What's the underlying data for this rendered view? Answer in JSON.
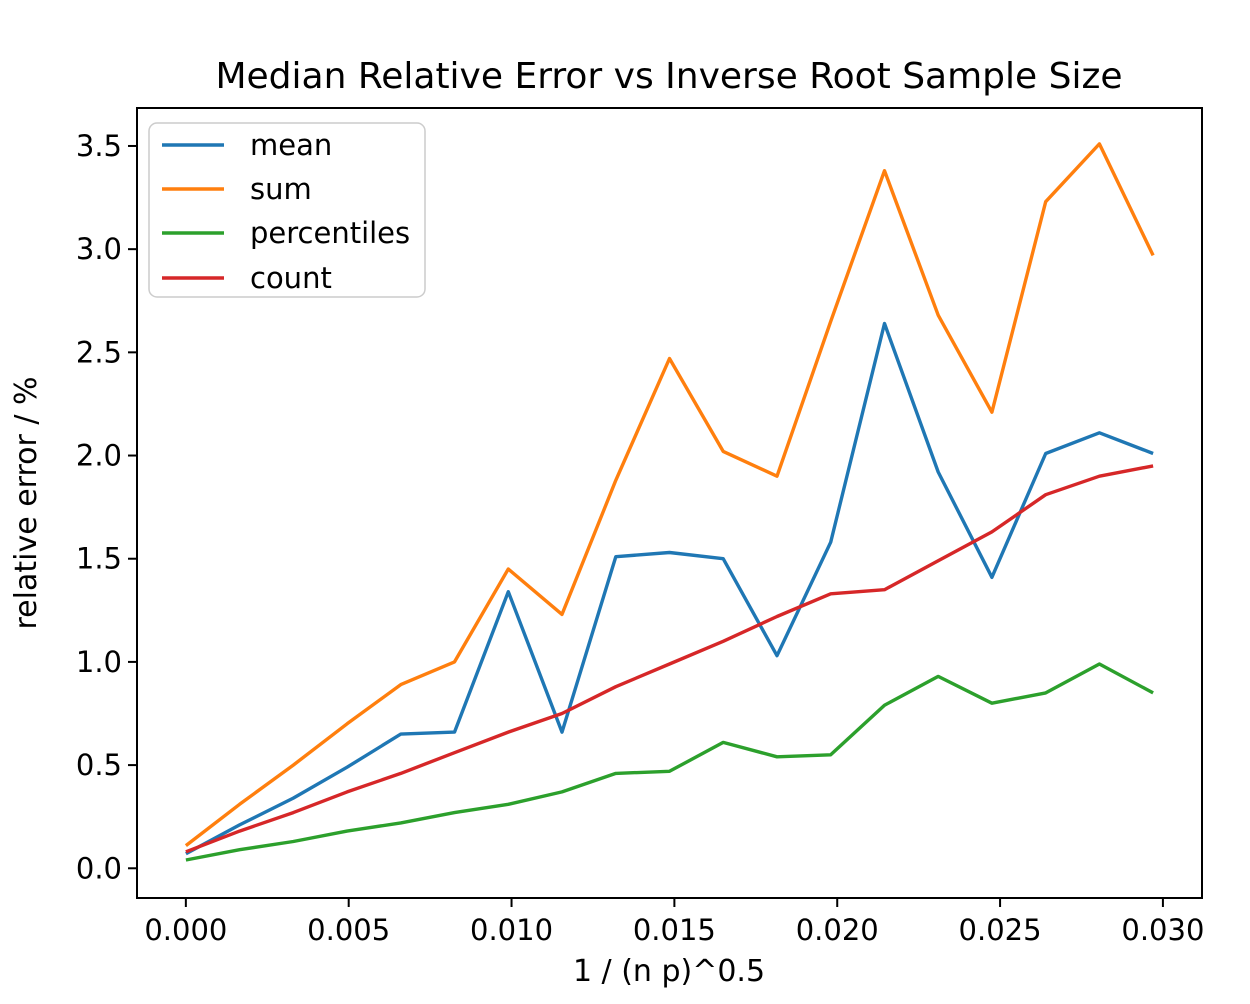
{
  "chart_data": {
    "type": "line",
    "title": "Median Relative Error vs Inverse Root Sample Size",
    "xlabel": "1 / (n p)^0.5",
    "ylabel": "relative error / %",
    "grid": false,
    "legend_position": "upper left",
    "xlim": [
      -0.0015,
      0.0312
    ],
    "ylim": [
      -0.144,
      3.684
    ],
    "xticks": {
      "values": [
        0,
        0.005,
        0.01,
        0.015,
        0.02,
        0.025,
        0.03
      ],
      "labels": [
        "0.000",
        "0.005",
        "0.010",
        "0.015",
        "0.020",
        "0.025",
        "0.030"
      ]
    },
    "yticks": {
      "values": [
        0.0,
        0.5,
        1.0,
        1.5,
        2.0,
        2.5,
        3.0,
        3.5
      ],
      "labels": [
        "0.0",
        "0.5",
        "1.0",
        "1.5",
        "2.0",
        "2.5",
        "3.0",
        "3.5"
      ]
    },
    "x": [
      0.0,
      0.00165,
      0.0033,
      0.00495,
      0.0066,
      0.00825,
      0.0099,
      0.01155,
      0.0132,
      0.01485,
      0.0165,
      0.01815,
      0.0198,
      0.02145,
      0.0231,
      0.02475,
      0.0264,
      0.02805,
      0.0297
    ],
    "series": [
      {
        "name": "mean",
        "color": "#1f77b4",
        "values": [
          0.07,
          0.21,
          0.34,
          0.49,
          0.65,
          0.66,
          1.34,
          0.66,
          1.51,
          1.53,
          1.5,
          1.03,
          1.58,
          2.64,
          1.92,
          1.41,
          2.01,
          2.11,
          2.01
        ]
      },
      {
        "name": "sum",
        "color": "#ff7f0e",
        "values": [
          0.11,
          0.31,
          0.5,
          0.7,
          0.89,
          1.0,
          1.45,
          1.23,
          1.88,
          2.47,
          2.02,
          1.9,
          2.65,
          3.38,
          2.68,
          2.21,
          3.23,
          3.51,
          2.97
        ]
      },
      {
        "name": "percentiles",
        "color": "#2ca02c",
        "values": [
          0.04,
          0.09,
          0.13,
          0.18,
          0.22,
          0.27,
          0.31,
          0.37,
          0.46,
          0.47,
          0.61,
          0.54,
          0.55,
          0.79,
          0.93,
          0.8,
          0.85,
          0.99,
          0.85
        ]
      },
      {
        "name": "count",
        "color": "#d62728",
        "values": [
          0.08,
          0.18,
          0.27,
          0.37,
          0.46,
          0.56,
          0.66,
          0.75,
          0.88,
          0.99,
          1.1,
          1.22,
          1.33,
          1.35,
          1.49,
          1.63,
          1.81,
          1.9,
          1.95
        ]
      }
    ]
  }
}
